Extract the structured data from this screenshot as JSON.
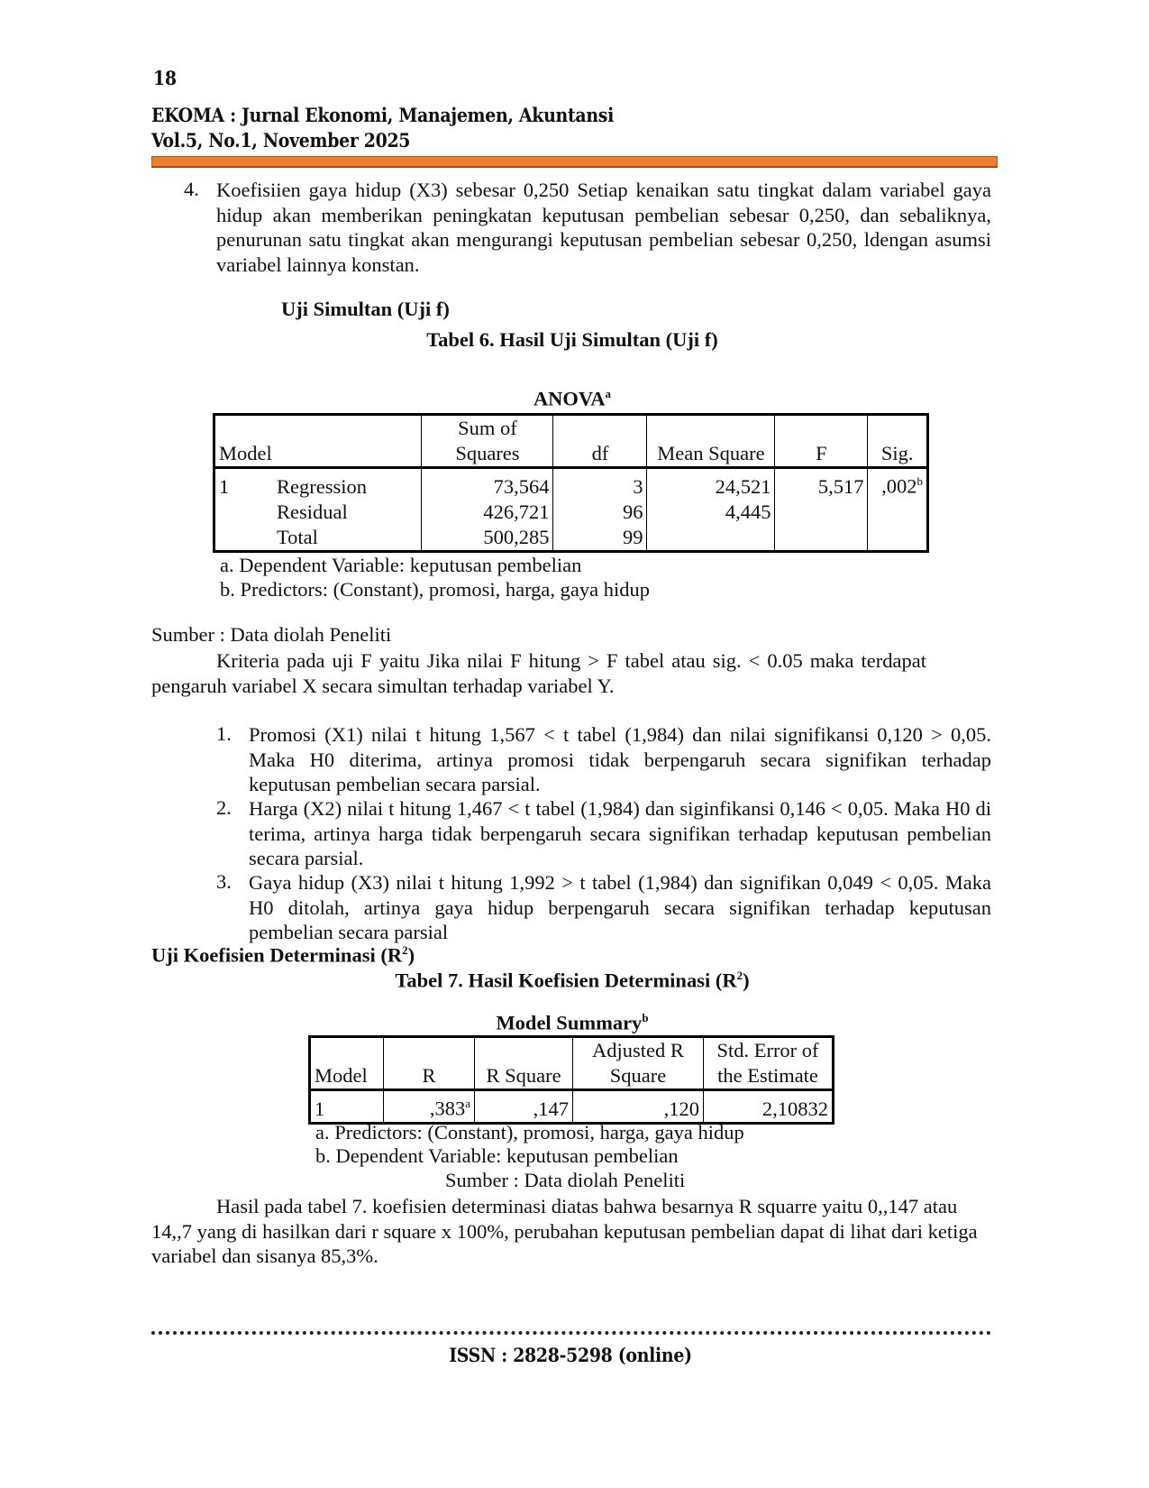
{
  "page_number": "18",
  "journal": {
    "title": "EKOMA : Jurnal Ekonomi, Manajemen, Akuntansi",
    "issue": "Vol.5, No.1, November 2025",
    "rule_color": "#ED7D31"
  },
  "item4": {
    "number": "4.",
    "text": "Koefisiien gaya hidup (X3) sebesar 0,250 Setiap kenaikan satu tingkat dalam variabel gaya hidup akan memberikan peningkatan keputusan pembelian sebesar 0,250, dan sebaliknya, penurunan satu tingkat akan mengurangi keputusan pembelian sebesar 0,250, ldengan asumsi variabel lainnya konstan."
  },
  "section_f": {
    "heading": "Uji Simultan (Uji f)",
    "table_caption": "Tabel 6. Hasil Uji Simultan (Uji f)"
  },
  "anova": {
    "title": "ANOVA",
    "title_sup": "a",
    "headers": {
      "model": "Model",
      "ss1": "Sum of",
      "ss2": "Squares",
      "df": "df",
      "ms": "Mean Square",
      "f": "F",
      "sig": "Sig."
    },
    "rows": [
      {
        "model": "1",
        "name": "Regression",
        "ss": "73,564",
        "df": "3",
        "ms": "24,521",
        "f": "5,517",
        "sig": ",002",
        "sig_sup": "b"
      },
      {
        "model": "",
        "name": "Residual",
        "ss": "426,721",
        "df": "96",
        "ms": "4,445",
        "f": "",
        "sig": "",
        "sig_sup": ""
      },
      {
        "model": "",
        "name": "Total",
        "ss": "500,285",
        "df": "99",
        "ms": "",
        "f": "",
        "sig": "",
        "sig_sup": ""
      }
    ],
    "notes": [
      "a. Dependent Variable: keputusan pembelian",
      "b. Predictors: (Constant), promosi, harga, gaya hidup"
    ]
  },
  "source1": "Sumber : Data diolah Peneliti",
  "criteria": "Kriteria pada uji F yaitu Jika nilai F hitung > F tabel atau sig. < 0.05 maka terdapat pengaruh variabel X secara simultan terhadap variabel Y.",
  "list": [
    {
      "number": "1.",
      "text": "Promosi (X1) nilai t hitung 1,567 < t tabel (1,984) dan nilai signifikansi 0,120 > 0,05. Maka H0 diterima, artinya promosi tidak berpengaruh secara signifikan terhadap keputusan pembelian secara parsial."
    },
    {
      "number": "2.",
      "text": "Harga (X2) nilai t hitung 1,467 < t tabel (1,984) dan siginfikansi 0,146 < 0,05. Maka H0 di terima, artinya harga tidak berpengaruh secara signifikan terhadap keputusan pembelian secara parsial."
    },
    {
      "number": "3.",
      "text": "Gaya hidup (X3) nilai t hitung 1,992 > t tabel (1,984) dan signifikan 0,049 < 0,05. Maka H0 ditolah, artinya gaya hidup berpengaruh secara signifikan terhadap keputusan pembelian secara parsial"
    }
  ],
  "section_r2": {
    "heading": "Uji Koefisien Determinasi (R",
    "heading_sup": "2",
    "heading_end": ")",
    "table_caption": "Tabel 7. Hasil Koefisien Determinasi (R",
    "caption_sup": "2",
    "caption_end": ")"
  },
  "model_summary": {
    "title": "Model Summary",
    "title_sup": "b",
    "headers": {
      "model": "Model",
      "r": "R",
      "rsq": "R Square",
      "adj1": "Adjusted R",
      "adj2": "Square",
      "se1": "Std. Error of",
      "se2": "the Estimate"
    },
    "row": {
      "model": "1",
      "r": ",383",
      "r_sup": "a",
      "rsq": ",147",
      "adj": ",120",
      "se": "2,10832"
    },
    "notes": [
      "a. Predictors: (Constant), promosi, harga, gaya hidup",
      "b. Dependent Variable: keputusan pembelian"
    ],
    "source": "Sumber : Data diolah Peneliti"
  },
  "conclusion": "Hasil pada tabel 7. koefisien determinasi diatas bahwa besarnya R squarre yaitu 0,,147 atau 14,,7 yang di hasilkan dari r square x 100%, perubahan keputusan pembelian dapat di lihat dari ketiga variabel dan sisanya 85,3%.",
  "footer": {
    "issn": "ISSN : 2828-5298 (online)"
  }
}
